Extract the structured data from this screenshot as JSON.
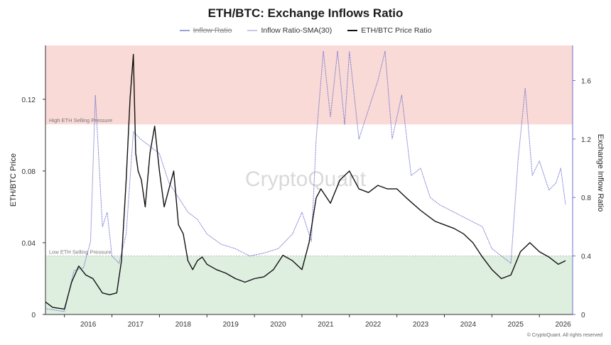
{
  "chart_data": {
    "type": "line",
    "title": "ETH/BTC: Exchange Inflows Ratio",
    "legend": [
      {
        "name": "Inflow Ratio",
        "color": "#9aa0d8",
        "hidden": true
      },
      {
        "name": "Inflow Ratio-SMA(30)",
        "color": "#c6c8e8",
        "hidden": false
      },
      {
        "name": "ETH/BTC Price Ratio",
        "color": "#111111",
        "hidden": false
      }
    ],
    "legend_position": "top-center",
    "y_left": {
      "label": "ETH/BTC Price",
      "ticks": [
        "0",
        "0.04",
        "0.08",
        "0.12"
      ],
      "range": [
        0,
        0.15
      ]
    },
    "y_right": {
      "label": "Exchange Inflow Ratio",
      "ticks": [
        "0",
        "0.4",
        "0.8",
        "1.2",
        "1.6"
      ],
      "range": [
        0,
        1.84
      ]
    },
    "x_ticks": [
      "2016",
      "2017",
      "2018",
      "2019",
      "2020",
      "2021",
      "2022",
      "2023",
      "2024",
      "2025",
      "2026"
    ],
    "x_range": [
      2015.6,
      2026.7
    ],
    "zones": [
      {
        "label": "High ETH Selling Pressure",
        "from": 1.3,
        "to": 1.84,
        "color": "#f9dad6"
      },
      {
        "label": "Low ETH Selling Pressure",
        "from": 0,
        "to": 0.4,
        "color": "#deefe0"
      }
    ],
    "grid": false,
    "watermark": "CryptoQuant",
    "footer": "© CryptoQuant. All rights reserved",
    "series": [
      {
        "name": "ETH/BTC Price Ratio",
        "axis": "left",
        "color": "#111111",
        "x": [
          2015.6,
          2015.75,
          2016.0,
          2016.15,
          2016.3,
          2016.45,
          2016.6,
          2016.8,
          2016.95,
          2017.1,
          2017.2,
          2017.3,
          2017.38,
          2017.45,
          2017.5,
          2017.55,
          2017.62,
          2017.7,
          2017.8,
          2017.9,
          2018.0,
          2018.1,
          2018.2,
          2018.3,
          2018.4,
          2018.5,
          2018.6,
          2018.7,
          2018.8,
          2018.9,
          2019.0,
          2019.2,
          2019.4,
          2019.6,
          2019.8,
          2020.0,
          2020.2,
          2020.4,
          2020.6,
          2020.8,
          2021.0,
          2021.15,
          2021.3,
          2021.4,
          2021.6,
          2021.8,
          2022.0,
          2022.2,
          2022.4,
          2022.6,
          2022.8,
          2023.0,
          2023.2,
          2023.5,
          2023.8,
          2024.0,
          2024.2,
          2024.4,
          2024.6,
          2024.8,
          2025.0,
          2025.2,
          2025.4,
          2025.6,
          2025.8,
          2026.0,
          2026.2,
          2026.4,
          2026.55
        ],
        "y": [
          0.007,
          0.004,
          0.003,
          0.018,
          0.027,
          0.022,
          0.02,
          0.012,
          0.011,
          0.012,
          0.03,
          0.075,
          0.12,
          0.145,
          0.09,
          0.08,
          0.075,
          0.06,
          0.09,
          0.105,
          0.08,
          0.06,
          0.07,
          0.08,
          0.05,
          0.045,
          0.03,
          0.025,
          0.03,
          0.032,
          0.028,
          0.025,
          0.023,
          0.02,
          0.018,
          0.02,
          0.021,
          0.025,
          0.033,
          0.03,
          0.025,
          0.04,
          0.065,
          0.07,
          0.062,
          0.075,
          0.08,
          0.07,
          0.068,
          0.072,
          0.07,
          0.07,
          0.065,
          0.058,
          0.052,
          0.05,
          0.048,
          0.045,
          0.04,
          0.032,
          0.025,
          0.02,
          0.022,
          0.035,
          0.04,
          0.035,
          0.032,
          0.028,
          0.03
        ]
      },
      {
        "name": "Inflow Ratio-SMA(30)",
        "axis": "right",
        "color": "#6b6fcf",
        "x": [
          2015.6,
          2016.0,
          2016.2,
          2016.4,
          2016.55,
          2016.65,
          2016.8,
          2016.9,
          2017.0,
          2017.15,
          2017.3,
          2017.45,
          2017.6,
          2017.8,
          2018.0,
          2018.2,
          2018.4,
          2018.6,
          2018.8,
          2019.0,
          2019.3,
          2019.6,
          2019.9,
          2020.2,
          2020.5,
          2020.8,
          2021.0,
          2021.2,
          2021.3,
          2021.45,
          2021.6,
          2021.75,
          2021.9,
          2022.0,
          2022.2,
          2022.4,
          2022.6,
          2022.75,
          2022.9,
          2023.1,
          2023.3,
          2023.5,
          2023.7,
          2023.9,
          2024.2,
          2024.5,
          2024.8,
          2025.0,
          2025.2,
          2025.4,
          2025.55,
          2025.7,
          2025.85,
          2026.0,
          2026.2,
          2026.35,
          2026.45,
          2026.55
        ],
        "y": [
          0.04,
          0.02,
          0.3,
          0.32,
          0.5,
          1.5,
          0.6,
          0.7,
          0.4,
          0.35,
          0.55,
          1.25,
          1.2,
          1.15,
          1.1,
          0.9,
          0.8,
          0.7,
          0.65,
          0.55,
          0.48,
          0.45,
          0.4,
          0.42,
          0.45,
          0.55,
          0.7,
          0.5,
          1.2,
          1.8,
          1.35,
          1.8,
          1.3,
          1.8,
          1.2,
          1.4,
          1.6,
          1.8,
          1.2,
          1.5,
          0.95,
          1.0,
          0.8,
          0.75,
          0.7,
          0.65,
          0.6,
          0.45,
          0.4,
          0.35,
          1.05,
          1.55,
          0.95,
          1.05,
          0.85,
          0.9,
          1.0,
          0.75
        ]
      }
    ]
  }
}
